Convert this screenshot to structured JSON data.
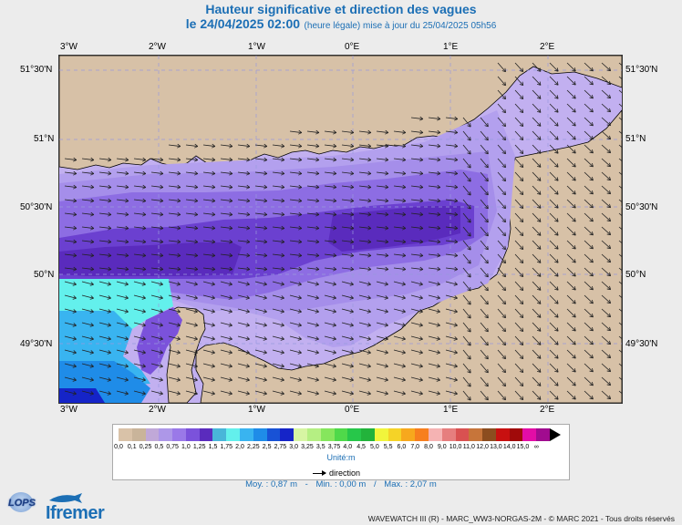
{
  "header": {
    "title": "Hauteur significative et direction des vagues",
    "date": "le 24/04/2025 02:00",
    "note": "(heure légale) mise à jour du 25/04/2025 05h56"
  },
  "map": {
    "lon_labels": [
      "3°W",
      "2°W",
      "1°W",
      "0°E",
      "1°E",
      "2°E"
    ],
    "lat_labels": [
      "51°30'N",
      "51°N",
      "50°30'N",
      "50°N",
      "49°30'N"
    ]
  },
  "legend": {
    "colors": [
      "#d9c2a8",
      "#c9b49a",
      "#c0a8d8",
      "#ad97e8",
      "#9a79e8",
      "#7b52db",
      "#5a2bbd",
      "#49b6d9",
      "#63f0ec",
      "#39b4f0",
      "#1f8ce8",
      "#1852d6",
      "#1524c8",
      "#d7f5a3",
      "#b5ef83",
      "#86e65d",
      "#4fd94a",
      "#27c74a",
      "#22b33b",
      "#f1f53c",
      "#f5d327",
      "#f7a81d",
      "#f77f1e",
      "#f5b3b3",
      "#e67e7e",
      "#d95151",
      "#c7753a",
      "#8c4d1f",
      "#c81010",
      "#a00a0a",
      "#e30da6",
      "#a10c8f"
    ],
    "labels": [
      "0,0",
      "0,1",
      "0,25",
      "0,5",
      "0,75",
      "1,0",
      "1,25",
      "1,5",
      "1,75",
      "2,0",
      "2,25",
      "2,5",
      "2,75",
      "3,0",
      "3,25",
      "3,5",
      "3,75",
      "4,0",
      "4,5",
      "5,0",
      "5,5",
      "6,0",
      "7,0",
      "8,0",
      "9,0",
      "10,0",
      "11,0",
      "12,0",
      "13,0",
      "14,0",
      "15,0",
      "∞"
    ],
    "unit": "Unité:m",
    "direction_label": "direction"
  },
  "stats": {
    "mean": "Moy. : 0,87 m",
    "min": "Min. : 0,00 m",
    "max": "Max. : 2,07 m"
  },
  "footer": {
    "logo_lops": "LOPS",
    "logo_ifremer": "Ifremer",
    "credit": "WAVEWATCH III (R) - MARC_WW3-NORGAS-2M - © MARC 2021 - Tous droits réservés"
  }
}
